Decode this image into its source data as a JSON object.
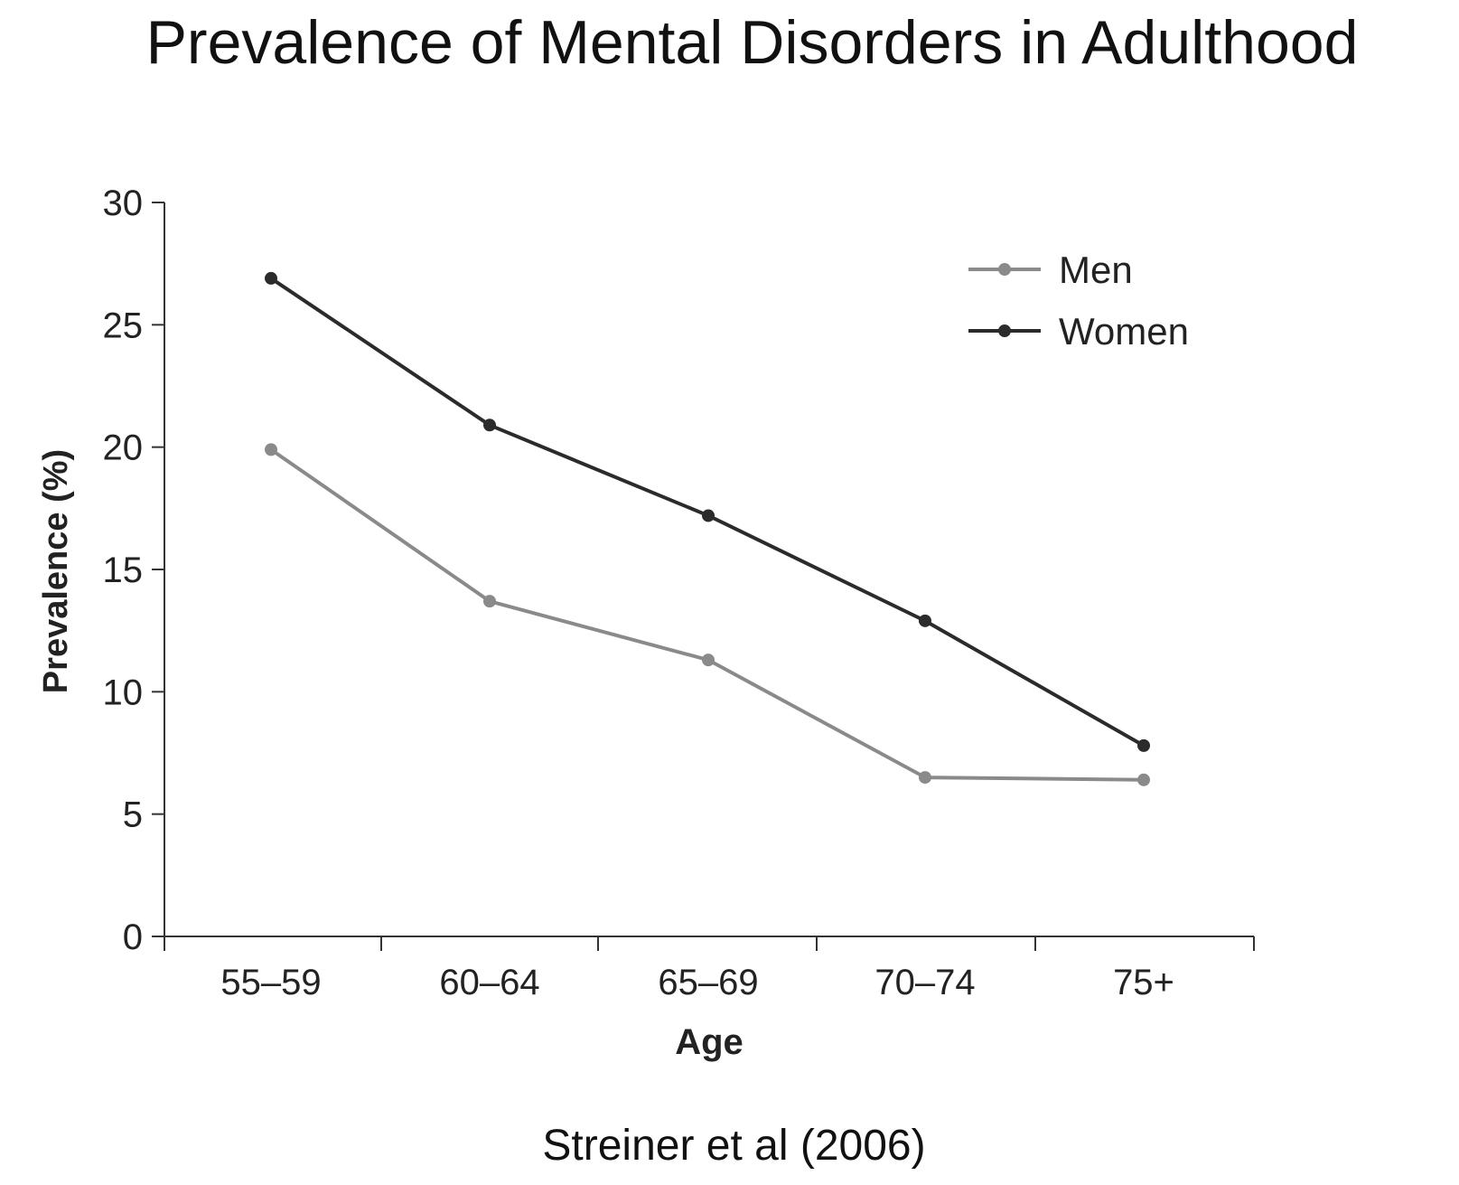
{
  "slide": {
    "title": "Prevalence of Mental Disorders in Adulthood",
    "source": "Streiner et al (2006)"
  },
  "chart_data": {
    "type": "line",
    "title": "",
    "xlabel": "Age",
    "ylabel": "Prevalence (%)",
    "categories": [
      "55–59",
      "60–64",
      "65–69",
      "70–74",
      "75+"
    ],
    "ylim": [
      0,
      30
    ],
    "yticks": [
      0,
      5,
      10,
      15,
      20,
      25,
      30
    ],
    "grid": false,
    "legend_position": "top-right",
    "series": [
      {
        "name": "Men",
        "values": [
          19.9,
          13.7,
          11.3,
          6.5,
          6.4
        ],
        "color": "#8a8a8a"
      },
      {
        "name": "Women",
        "values": [
          26.9,
          20.9,
          17.2,
          12.9,
          7.8
        ],
        "color": "#2b2b2b"
      }
    ]
  }
}
